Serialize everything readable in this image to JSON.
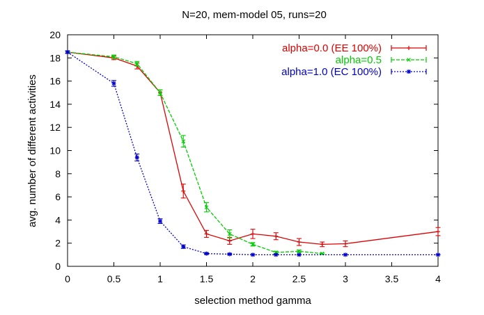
{
  "chart_data": {
    "type": "line",
    "title": "N=20, mem-model 05, runs=20",
    "xlabel": "selection method gamma",
    "ylabel": "avg. number of different activities",
    "xlim": [
      0,
      4
    ],
    "ylim": [
      0,
      20
    ],
    "x_ticks": [
      0,
      0.5,
      1,
      1.5,
      2,
      2.5,
      3,
      3.5,
      4
    ],
    "x_tick_labels": [
      "0",
      "0.5",
      "1",
      "1.5",
      "2",
      "2.5",
      "3",
      "3.5",
      "4"
    ],
    "y_ticks": [
      0,
      2,
      4,
      6,
      8,
      10,
      12,
      14,
      16,
      18,
      20
    ],
    "y_tick_labels": [
      "0",
      "2",
      "4",
      "6",
      "8",
      "10",
      "12",
      "14",
      "16",
      "18",
      "20"
    ],
    "grid": false,
    "legend_position": "top-right",
    "series": [
      {
        "name": "alpha=0.0 (EE 100%)",
        "color": "#dd0000",
        "dash": "solid",
        "marker": "plus",
        "x": [
          0,
          0.5,
          0.75,
          1.0,
          1.25,
          1.5,
          1.75,
          2.0,
          2.25,
          2.5,
          2.75,
          3.0,
          4.0
        ],
        "y": [
          18.5,
          18.0,
          17.3,
          15.0,
          6.5,
          2.8,
          2.2,
          2.8,
          2.6,
          2.1,
          1.9,
          1.95,
          3.0
        ],
        "err": [
          0.1,
          0.15,
          0.25,
          0.25,
          0.6,
          0.3,
          0.3,
          0.4,
          0.3,
          0.3,
          0.2,
          0.25,
          0.35
        ]
      },
      {
        "name": "alpha=0.5",
        "color": "#00cc00",
        "dash": "dashed",
        "marker": "x",
        "x": [
          0,
          0.5,
          0.75,
          1.0,
          1.25,
          1.5,
          1.75,
          2.0,
          2.25,
          2.5,
          2.75
        ],
        "y": [
          18.5,
          18.1,
          17.5,
          15.0,
          10.8,
          5.1,
          2.8,
          1.9,
          1.2,
          1.3,
          1.1
        ],
        "err": [
          0.1,
          0.15,
          0.2,
          0.25,
          0.5,
          0.4,
          0.35,
          0.15,
          0.1,
          0.1,
          0.05
        ]
      },
      {
        "name": "alpha=1.0 (EC 100%)",
        "color": "#0000cc",
        "dash": "dotted",
        "marker": "star",
        "x": [
          0,
          0.5,
          0.75,
          1.0,
          1.25,
          1.5,
          1.75,
          2.0,
          2.25,
          2.5,
          3.0,
          4.0
        ],
        "y": [
          18.5,
          15.8,
          9.4,
          3.9,
          1.7,
          1.1,
          1.05,
          1.0,
          1.0,
          1.0,
          1.0,
          1.0
        ],
        "err": [
          0.1,
          0.25,
          0.3,
          0.2,
          0.15,
          0.05,
          0.05,
          0.02,
          0.02,
          0.02,
          0.02,
          0.02
        ]
      }
    ]
  }
}
